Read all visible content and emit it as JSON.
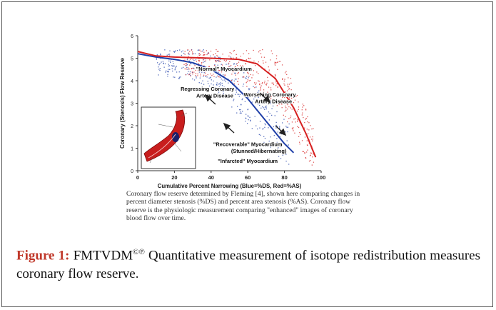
{
  "figure": {
    "description_lines": [
      "Coronary flow reserve determined by Fleming [4], shown here comparing changes in",
      "percent diameter stenosis (%DS) and percent area stenosis (%AS). Coronary flow",
      "reserve is the physiologic measurement comparing \"enhanced\" images of coronary",
      "blood flow over time."
    ],
    "caption_label": "Figure 1:",
    "caption_name": "FMTVDM",
    "caption_sup": "©℗",
    "caption_text": " Quantitative measurement of isotope redistribution measures coronary flow reserve."
  },
  "chart_data": {
    "type": "scatter",
    "xlabel": "Cumulative Percent Narrowing (Blue=%DS, Red=%AS)",
    "ylabel": "Coronary (Stenosis) Flow Reserve",
    "xlim": [
      0,
      100
    ],
    "ylim": [
      0,
      6
    ],
    "x_ticks": [
      "0",
      "20",
      "40",
      "60",
      "80",
      "100"
    ],
    "y_ticks": [
      "0",
      "1",
      "2",
      "3",
      "4",
      "5",
      "6"
    ],
    "series": [
      {
        "color": "#1f3fa8",
        "curve": [
          [
            0,
            5.2
          ],
          [
            10,
            5.05
          ],
          [
            20,
            4.95
          ],
          [
            30,
            4.8
          ],
          [
            40,
            4.5
          ],
          [
            50,
            4.0
          ],
          [
            60,
            3.2
          ],
          [
            70,
            2.2
          ],
          [
            80,
            1.2
          ],
          [
            85,
            0.8
          ]
        ]
      },
      {
        "color": "#d62020",
        "curve": [
          [
            0,
            5.3
          ],
          [
            10,
            5.1
          ],
          [
            20,
            5.05
          ],
          [
            40,
            5.0
          ],
          [
            55,
            4.95
          ],
          [
            65,
            4.75
          ],
          [
            75,
            4.1
          ],
          [
            85,
            2.8
          ],
          [
            92,
            1.6
          ],
          [
            97,
            0.6
          ]
        ]
      }
    ],
    "annotations": [
      {
        "text": "\"Normal\" Myocardium",
        "x": 47,
        "y": 4.45
      },
      {
        "text": "Regressing Coronary",
        "x": 38,
        "y": 3.55
      },
      {
        "text": "Artery Disease",
        "x": 42,
        "y": 3.25
      },
      {
        "text": "Worsening Coronary",
        "x": 72,
        "y": 3.3
      },
      {
        "text": "Artery Disease",
        "x": 74,
        "y": 3.0
      },
      {
        "text": "\"Recoverable\" Myocardium",
        "x": 60,
        "y": 1.1
      },
      {
        "text": "(Stunned/Hibernating)",
        "x": 66,
        "y": 0.8
      },
      {
        "text": "\"Infarcted\" Myocardium",
        "x": 60,
        "y": 0.35
      }
    ]
  }
}
